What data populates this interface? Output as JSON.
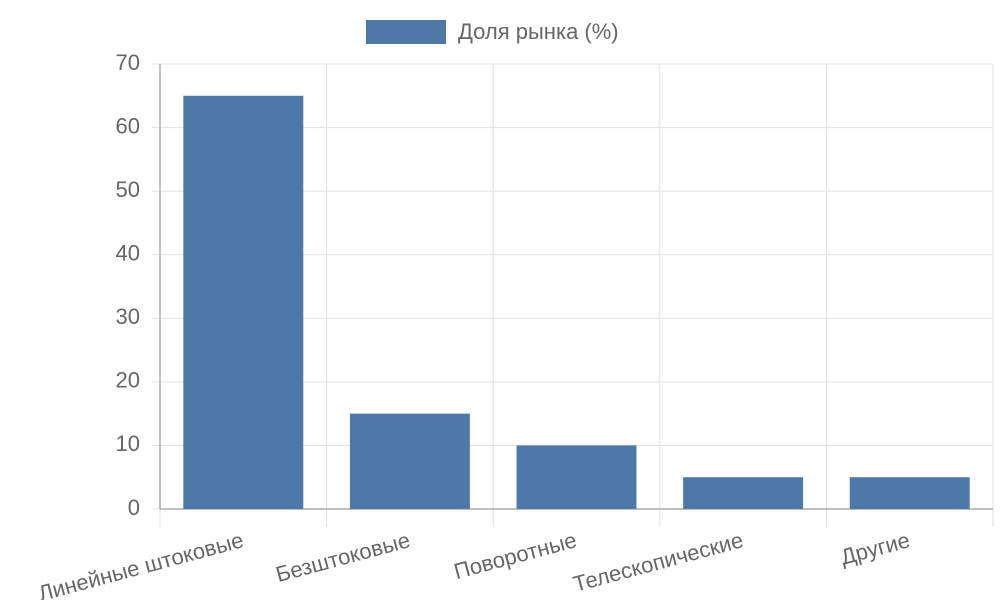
{
  "chart_data": {
    "type": "bar",
    "categories": [
      "Линейные штоковые",
      "Безштоковые",
      "Поворотные",
      "Телескопические",
      "Другие"
    ],
    "series": [
      {
        "name": "Доля рынка (%)",
        "color": "#4e78a8",
        "values": [
          65,
          15,
          10,
          5,
          5
        ]
      }
    ],
    "ylim": [
      0,
      70
    ],
    "yticks": [
      0,
      10,
      20,
      30,
      40,
      50,
      60,
      70
    ],
    "grid": true,
    "legend": "top"
  }
}
